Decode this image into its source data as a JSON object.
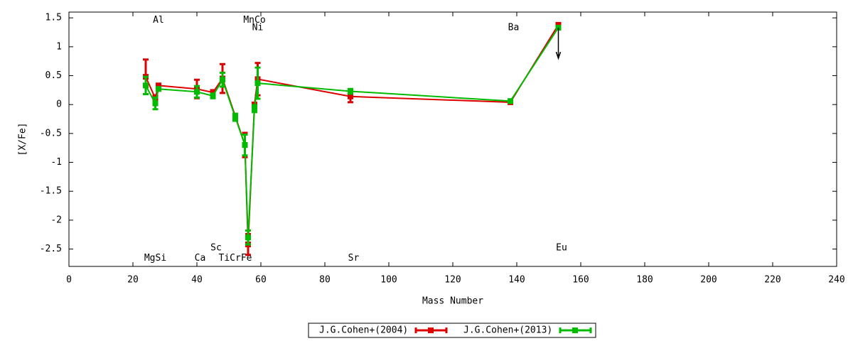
{
  "chart_data": {
    "type": "errorbar-line",
    "xlabel": "Mass Number",
    "ylabel": "[X/Fe]",
    "xlim": [
      0,
      240
    ],
    "xticks": [
      0,
      20,
      40,
      60,
      80,
      100,
      120,
      140,
      160,
      180,
      200,
      220,
      240
    ],
    "ylim": [
      -2.8,
      1.6
    ],
    "yticks": [
      -2.5,
      -2,
      -1.5,
      -1,
      -0.5,
      0,
      0.5,
      1,
      1.5
    ],
    "legend": "bottom",
    "series": [
      {
        "name": "J.G.Cohen+(2004)",
        "color": "#dd0000",
        "x": [
          24,
          27,
          28,
          40,
          45,
          48,
          52,
          55,
          56,
          58,
          59,
          88,
          138,
          153
        ],
        "values": [
          0.48,
          0.11,
          0.33,
          0.27,
          0.21,
          0.45,
          -0.2,
          -0.7,
          -2.42,
          0,
          0.44,
          0.14,
          0.04,
          1.38
        ],
        "errors": [
          0.3,
          0.05,
          0.03,
          0.16,
          0.04,
          0.25,
          0.04,
          0.21,
          0.18,
          0.03,
          0.28,
          0.1,
          0.02,
          0.03
        ]
      },
      {
        "name": "J.G.Cohen+(2013)",
        "color": "#00bb00",
        "x": [
          24,
          27,
          28,
          40,
          45,
          48,
          52,
          55,
          56,
          58,
          59,
          88,
          138,
          153
        ],
        "values": [
          0.33,
          0.02,
          0.27,
          0.22,
          0.15,
          0.43,
          -0.22,
          -0.7,
          -2.3,
          -0.07,
          0.37,
          0.23,
          0.06,
          1.33
        ],
        "errors": [
          0.15,
          0.1,
          0.03,
          0.1,
          0.04,
          0.12,
          0.06,
          0.18,
          0.12,
          0.06,
          0.27,
          0.04,
          0.03,
          0.03
        ]
      }
    ],
    "upper_limit_arrow": {
      "x": 153,
      "from": 1.33,
      "to": 0.8,
      "color": "#000000"
    },
    "annotations": [
      {
        "text": "Al",
        "x": 28,
        "y": 1.46
      },
      {
        "text": "MnCo",
        "x": 58,
        "y": 1.46
      },
      {
        "text": "Ni",
        "x": 59,
        "y": 1.33
      },
      {
        "text": "Ba",
        "x": 139,
        "y": 1.33
      },
      {
        "text": "MgSi",
        "x": 27,
        "y": -2.66
      },
      {
        "text": "Ca",
        "x": 41,
        "y": -2.66
      },
      {
        "text": "Sc",
        "x": 46,
        "y": -2.48
      },
      {
        "text": "TiCrFe",
        "x": 52,
        "y": -2.66
      },
      {
        "text": "Sr",
        "x": 89,
        "y": -2.66
      },
      {
        "text": "Eu",
        "x": 154,
        "y": -2.48
      }
    ]
  }
}
